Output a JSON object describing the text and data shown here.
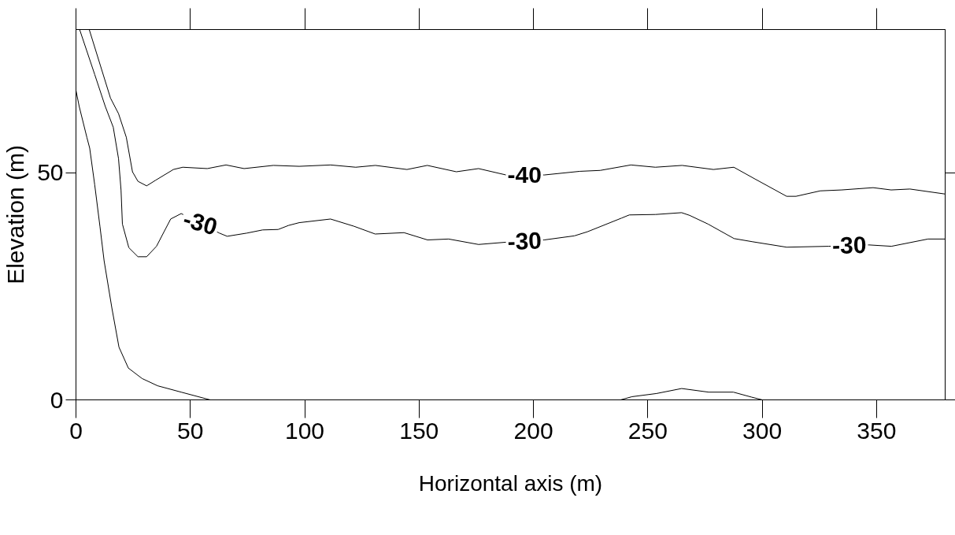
{
  "chart_data": {
    "type": "line",
    "xlabel": "Horizontal axis (m)",
    "ylabel": "Elevation (m)",
    "xlim": [
      0,
      380
    ],
    "ylim": [
      0,
      81.5
    ],
    "xticks": [
      0,
      50,
      100,
      150,
      200,
      250,
      300,
      350
    ],
    "yticks": [
      0,
      50
    ],
    "grid": false,
    "marker": "none",
    "line_style": "solid",
    "series": [
      {
        "color": "#000000",
        "x": [
          5.8,
          15.1,
          18.6,
          22,
          24.7,
          27.1,
          30.9,
          34.7,
          42.6,
          46.7,
          57.4,
          65.6,
          73.5,
          86.3,
          97.6,
          111.3,
          122.3,
          130.9,
          144.7,
          153.6,
          166.3,
          176,
          188,
          204.8,
          220.3,
          229.2,
          242.6,
          253.3,
          265,
          278.7,
          287.6,
          296.9,
          310.7,
          314.8,
          325.4,
          334.7,
          348.5,
          356.4,
          364.6,
          380
        ],
        "values": [
          81.5,
          66.4,
          63.0,
          57.8,
          50.2,
          48.1,
          47.1,
          48.3,
          50.7,
          51.2,
          50.9,
          51.7,
          50.9,
          51.6,
          51.4,
          51.7,
          51.2,
          51.6,
          50.7,
          51.6,
          50.2,
          50.9,
          49.5,
          49.5,
          50.3,
          50.5,
          51.7,
          51.2,
          51.6,
          50.7,
          51.2,
          48.6,
          44.8,
          44.8,
          46.0,
          46.2,
          46.7,
          46.2,
          46.4,
          45.3
        ]
      },
      {
        "color": "#000000",
        "x": [
          1.6,
          8.2,
          12.8,
          16.3,
          18.6,
          19.7,
          20.3,
          23.1,
          27.1,
          30.9,
          35.2,
          41.4,
          46,
          62.7,
          66.1,
          74.7,
          81.6,
          88.4,
          93,
          97.6,
          111.3,
          121.6,
          130.8,
          143.4,
          153.7,
          162.9,
          176,
          188.1,
          204.7,
          217.9,
          223.6,
          238.5,
          241.9,
          253.4,
          264.8,
          268.3,
          276.3,
          287.7,
          295.8,
          310.7,
          329,
          346.7,
          356.5,
          372.5,
          380
        ],
        "values": [
          81.5,
          71.6,
          64.6,
          60.0,
          53.1,
          46.2,
          38.7,
          33.5,
          31.5,
          31.5,
          33.8,
          39.8,
          41.0,
          36.7,
          36.0,
          36.7,
          37.4,
          37.5,
          38.4,
          39.0,
          39.8,
          38.2,
          36.5,
          36.8,
          35.2,
          35.4,
          34.2,
          34.7,
          35.2,
          36.1,
          37.0,
          40.0,
          40.7,
          40.8,
          41.2,
          40.6,
          38.7,
          35.5,
          34.8,
          33.6,
          33.8,
          34.1,
          33.8,
          35.4,
          35.4
        ]
      },
      {
        "color": "#000000",
        "x": [
          0,
          1.4,
          4.8,
          6,
          8.2,
          10.5,
          12.3,
          15.7,
          18.8,
          22.9,
          28.9,
          35.7,
          46,
          58.7,
          150,
          238.1,
          243.1,
          253.8,
          264.8,
          276.6,
          287.4,
          295.4,
          300.1
        ],
        "values": [
          68.1,
          64.6,
          57.7,
          55.4,
          47.3,
          38.1,
          30.6,
          20.2,
          11.6,
          7.0,
          4.7,
          3.1,
          1.7,
          0,
          null,
          0,
          0.7,
          1.4,
          2.5,
          1.7,
          1.7,
          0.6,
          0
        ]
      }
    ],
    "annotations": [
      {
        "text": "-40",
        "x": 196.1,
        "y": 49.5
      },
      {
        "text": "-30",
        "x": 54.3,
        "y": 38.9
      },
      {
        "text": "-30",
        "x": 196.1,
        "y": 34.9
      },
      {
        "text": "-30",
        "x": 338.1,
        "y": 34.0
      }
    ]
  }
}
